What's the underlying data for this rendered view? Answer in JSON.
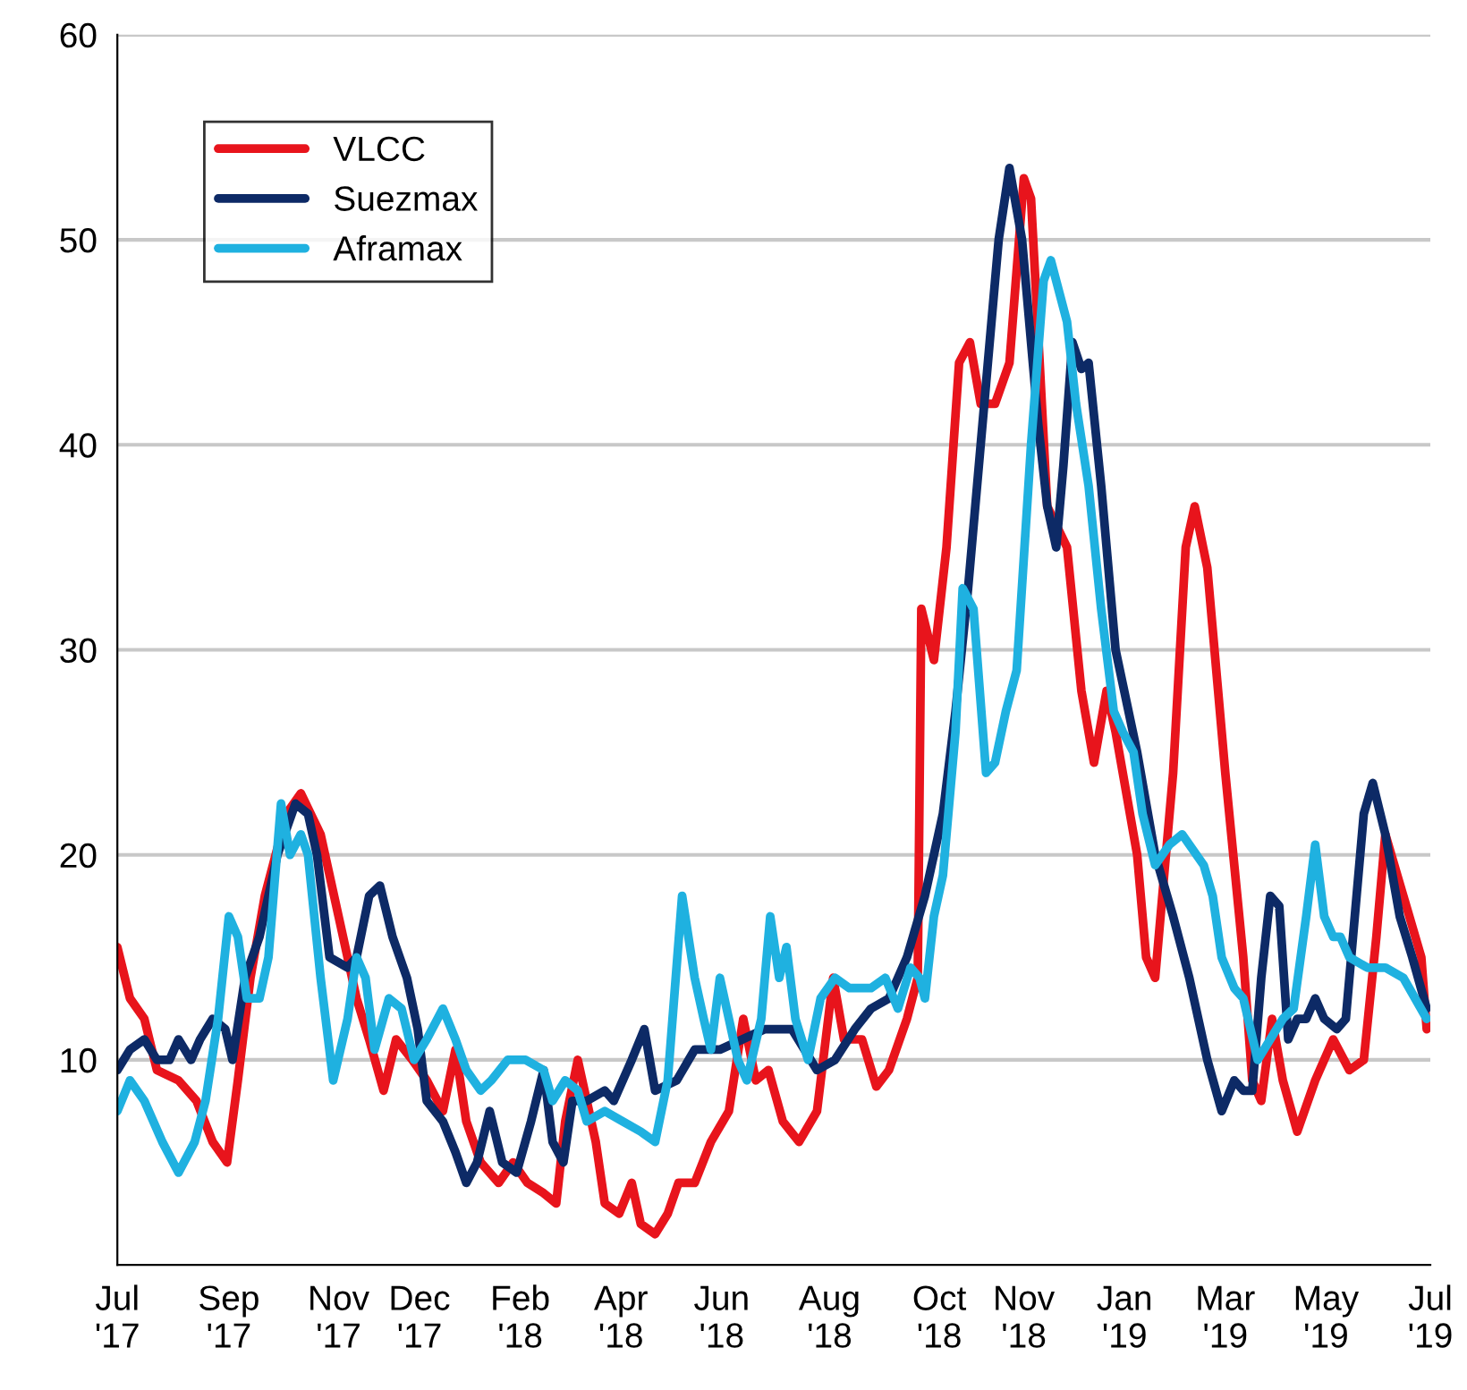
{
  "chart_data": {
    "type": "line",
    "xlim": [
      "2017-07-01",
      "2019-07-01"
    ],
    "ylim": [
      0,
      60
    ],
    "yticks": [
      10,
      20,
      30,
      40,
      50,
      60
    ],
    "xticks": [
      {
        "value": "2017-07-01",
        "label": "Jul\n'17"
      },
      {
        "value": "2017-09-01",
        "label": "Sep\n'17"
      },
      {
        "value": "2017-11-01",
        "label": "Nov\n'17"
      },
      {
        "value": "2017-12-16",
        "label": "Dec\n'17"
      },
      {
        "value": "2018-02-10",
        "label": "Feb\n'18"
      },
      {
        "value": "2018-04-07",
        "label": "Apr\n'18"
      },
      {
        "value": "2018-06-02",
        "label": "Jun\n'18"
      },
      {
        "value": "2018-08-01",
        "label": "Aug\n'18"
      },
      {
        "value": "2018-10-01",
        "label": "Oct\n'18"
      },
      {
        "value": "2018-11-17",
        "label": "Nov\n'18"
      },
      {
        "value": "2019-01-12",
        "label": "Jan\n'19"
      },
      {
        "value": "2019-03-09",
        "label": "Mar\n'19"
      },
      {
        "value": "2019-05-04",
        "label": "May\n'19"
      },
      {
        "value": "2019-07-01",
        "label": "Jul\n'19"
      }
    ],
    "grid": "y",
    "legend": "top left",
    "line_style": "solid",
    "series": [
      {
        "name": "VLCC",
        "color": "#e8141c",
        "x": [
          "2017-07-01",
          "2017-07-08",
          "2017-07-16",
          "2017-07-23",
          "2017-08-04",
          "2017-08-14",
          "2017-08-23",
          "2017-08-31",
          "2017-09-06",
          "2017-09-13",
          "2017-09-21",
          "2017-10-03",
          "2017-10-11",
          "2017-10-22",
          "2017-11-01",
          "2017-11-11",
          "2017-11-18",
          "2017-11-26",
          "2017-12-03",
          "2017-12-12",
          "2017-12-20",
          "2017-12-29",
          "2018-01-05",
          "2018-01-11",
          "2018-01-19",
          "2018-01-29",
          "2018-02-06",
          "2018-02-14",
          "2018-02-23",
          "2018-03-02",
          "2018-03-07",
          "2018-03-14",
          "2018-03-19",
          "2018-03-24",
          "2018-03-29",
          "2018-04-06",
          "2018-04-13",
          "2018-04-18",
          "2018-04-26",
          "2018-05-03",
          "2018-05-09",
          "2018-05-18",
          "2018-05-27",
          "2018-06-06",
          "2018-06-14",
          "2018-06-21",
          "2018-06-28",
          "2018-07-06",
          "2018-07-15",
          "2018-07-25",
          "2018-08-03",
          "2018-08-09",
          "2018-08-19",
          "2018-08-27",
          "2018-09-03",
          "2018-09-13",
          "2018-09-19",
          "2018-09-21",
          "2018-09-28",
          "2018-10-05",
          "2018-10-12",
          "2018-10-18",
          "2018-10-24",
          "2018-11-01",
          "2018-11-09",
          "2018-11-17",
          "2018-11-21",
          "2018-11-30",
          "2018-12-11",
          "2018-12-19",
          "2018-12-26",
          "2019-01-02",
          "2019-01-07",
          "2019-01-19",
          "2019-01-24",
          "2019-01-29",
          "2019-02-08",
          "2019-02-15",
          "2019-02-20",
          "2019-02-27",
          "2019-03-09",
          "2019-03-19",
          "2019-03-24",
          "2019-03-29",
          "2019-04-04",
          "2019-04-10",
          "2019-04-18",
          "2019-04-28",
          "2019-05-08",
          "2019-05-17",
          "2019-05-25",
          "2019-06-01",
          "2019-06-06",
          "2019-06-16",
          "2019-06-26",
          "2019-06-29"
        ],
        "values": [
          15.5,
          13,
          12,
          9.5,
          9,
          8,
          6,
          5,
          9,
          14,
          18,
          22,
          23,
          21,
          17,
          13,
          11,
          8.5,
          11,
          10,
          9,
          7.5,
          10.5,
          7,
          5,
          4,
          5,
          4,
          3.5,
          3,
          7,
          10,
          8,
          6,
          3,
          2.5,
          4,
          2,
          1.5,
          2.5,
          4,
          4,
          6,
          7.5,
          12,
          9,
          9.5,
          7,
          6,
          7.5,
          14,
          11,
          11,
          8.7,
          9.5,
          12,
          14,
          32,
          29.5,
          35,
          44,
          45,
          42,
          42,
          44,
          53,
          52,
          37,
          35,
          28,
          24.5,
          28,
          26,
          20,
          15,
          14,
          24,
          35,
          37,
          34,
          24,
          15,
          9,
          8,
          12,
          9,
          6.5,
          9,
          11,
          9.5,
          10,
          16,
          21,
          18,
          15,
          11.5
        ]
      },
      {
        "name": "Suezmax",
        "color": "#0d2a66",
        "x": [
          "2017-07-01",
          "2017-07-08",
          "2017-07-16",
          "2017-07-23",
          "2017-07-30",
          "2017-08-04",
          "2017-08-11",
          "2017-08-16",
          "2017-08-23",
          "2017-08-30",
          "2017-09-03",
          "2017-09-10",
          "2017-09-18",
          "2017-09-28",
          "2017-10-08",
          "2017-10-15",
          "2017-10-20",
          "2017-10-27",
          "2017-11-06",
          "2017-11-11",
          "2017-11-18",
          "2017-11-24",
          "2017-12-01",
          "2017-12-09",
          "2017-12-15",
          "2017-12-20",
          "2017-12-29",
          "2018-01-05",
          "2018-01-11",
          "2018-01-17",
          "2018-01-24",
          "2018-01-31",
          "2018-02-08",
          "2018-02-16",
          "2018-02-23",
          "2018-02-28",
          "2018-03-06",
          "2018-03-11",
          "2018-03-19",
          "2018-03-29",
          "2018-04-03",
          "2018-04-13",
          "2018-04-20",
          "2018-04-26",
          "2018-05-08",
          "2018-05-18",
          "2018-06-01",
          "2018-06-26",
          "2018-07-11",
          "2018-07-25",
          "2018-08-04",
          "2018-08-15",
          "2018-08-24",
          "2018-09-03",
          "2018-09-13",
          "2018-09-23",
          "2018-10-03",
          "2018-10-10",
          "2018-10-17",
          "2018-10-27",
          "2018-11-03",
          "2018-11-09",
          "2018-11-16",
          "2018-11-25",
          "2018-11-30",
          "2018-12-05",
          "2018-12-09",
          "2018-12-14",
          "2018-12-19",
          "2018-12-23",
          "2018-12-30",
          "2019-01-07",
          "2019-01-19",
          "2019-01-29",
          "2019-02-08",
          "2019-02-17",
          "2019-02-27",
          "2019-03-07",
          "2019-03-14",
          "2019-03-19",
          "2019-03-24",
          "2019-03-29",
          "2019-04-03",
          "2019-04-08",
          "2019-04-13",
          "2019-04-18",
          "2019-04-23",
          "2019-04-28",
          "2019-05-03",
          "2019-05-10",
          "2019-05-15",
          "2019-05-19",
          "2019-05-25",
          "2019-05-30",
          "2019-06-06",
          "2019-06-14",
          "2019-06-21",
          "2019-06-29"
        ],
        "values": [
          9.5,
          10.5,
          11,
          10,
          10,
          11,
          10,
          11,
          12,
          11.5,
          10,
          14,
          16,
          20,
          22.5,
          22,
          20,
          15,
          14.5,
          15,
          18,
          18.5,
          16,
          14,
          11.5,
          8,
          7,
          5.5,
          4,
          5,
          7.5,
          5,
          4.5,
          7,
          9.5,
          6,
          5,
          8,
          8,
          8.5,
          8,
          10,
          11.5,
          8.5,
          9,
          10.5,
          10.5,
          11.5,
          11.5,
          9.5,
          10,
          11.5,
          12.5,
          13,
          15,
          18,
          22,
          27,
          33,
          43,
          50,
          53.5,
          50,
          41,
          37,
          35,
          39,
          45,
          43.7,
          44,
          38,
          30,
          25,
          20,
          17,
          14,
          10,
          7.5,
          9,
          8.5,
          8.5,
          14,
          18,
          17.5,
          11,
          12,
          12,
          13,
          12,
          11.5,
          12,
          16,
          22,
          23.5,
          21,
          17,
          15,
          12.5
        ]
      },
      {
        "name": "Aframax",
        "color": "#1fb1e0",
        "x": [
          "2017-07-01",
          "2017-07-08",
          "2017-07-16",
          "2017-07-26",
          "2017-08-04",
          "2017-08-13",
          "2017-08-19",
          "2017-08-26",
          "2017-09-01",
          "2017-09-06",
          "2017-09-11",
          "2017-09-18",
          "2017-09-23",
          "2017-09-30",
          "2017-10-05",
          "2017-10-11",
          "2017-10-15",
          "2017-10-22",
          "2017-10-29",
          "2017-11-06",
          "2017-11-11",
          "2017-11-16",
          "2017-11-21",
          "2017-11-29",
          "2017-12-06",
          "2017-12-13",
          "2017-12-20",
          "2017-12-29",
          "2018-01-05",
          "2018-01-11",
          "2018-01-19",
          "2018-01-25",
          "2018-02-03",
          "2018-02-13",
          "2018-02-23",
          "2018-02-28",
          "2018-03-07",
          "2018-03-14",
          "2018-03-19",
          "2018-03-29",
          "2018-04-08",
          "2018-04-18",
          "2018-04-26",
          "2018-05-03",
          "2018-05-11",
          "2018-05-18",
          "2018-05-23",
          "2018-05-27",
          "2018-06-01",
          "2018-06-06",
          "2018-06-11",
          "2018-06-16",
          "2018-06-24",
          "2018-06-29",
          "2018-07-04",
          "2018-07-08",
          "2018-07-13",
          "2018-07-20",
          "2018-07-27",
          "2018-08-04",
          "2018-08-12",
          "2018-08-24",
          "2018-09-01",
          "2018-09-08",
          "2018-09-15",
          "2018-09-20",
          "2018-09-23",
          "2018-09-28",
          "2018-10-03",
          "2018-10-10",
          "2018-10-14",
          "2018-10-20",
          "2018-10-27",
          "2018-11-01",
          "2018-11-07",
          "2018-11-13",
          "2018-11-21",
          "2018-11-28",
          "2018-12-02",
          "2018-12-11",
          "2018-12-16",
          "2018-12-23",
          "2018-12-30",
          "2019-01-06",
          "2019-01-11",
          "2019-01-17",
          "2019-01-22",
          "2019-01-29",
          "2019-02-06",
          "2019-02-13",
          "2019-02-17",
          "2019-02-25",
          "2019-03-02",
          "2019-03-07",
          "2019-03-14",
          "2019-03-19",
          "2019-03-27",
          "2019-04-03",
          "2019-04-10",
          "2019-04-16",
          "2019-04-23",
          "2019-04-28",
          "2019-05-03",
          "2019-05-08",
          "2019-05-12",
          "2019-05-17",
          "2019-05-27",
          "2019-06-06",
          "2019-06-16",
          "2019-06-29"
        ],
        "values": [
          7.5,
          9,
          8,
          6,
          4.5,
          6,
          8,
          12,
          17,
          16,
          13,
          13,
          15,
          22.5,
          20,
          21,
          20,
          14,
          9,
          12,
          15,
          14,
          10.5,
          13,
          12.5,
          10,
          11,
          12.5,
          11,
          9.5,
          8.5,
          9,
          10,
          10,
          9.5,
          8,
          9,
          8.5,
          7,
          7.5,
          7,
          6.5,
          6,
          9,
          18,
          14,
          12,
          10.5,
          14,
          12,
          10,
          9,
          12,
          17,
          14,
          15.5,
          12,
          10,
          13,
          14,
          13.5,
          13.5,
          14,
          12.5,
          14.5,
          14,
          13,
          17,
          19,
          26,
          33,
          32,
          24,
          24.5,
          27,
          29,
          40,
          48,
          49,
          46,
          42,
          38,
          32,
          27,
          26,
          25,
          22,
          19.5,
          20.5,
          21,
          20.5,
          19.5,
          18,
          15,
          13.5,
          13,
          10,
          11,
          12,
          12.5,
          17,
          20.5,
          17,
          16,
          16,
          15,
          14.5,
          14.5,
          14,
          12
        ]
      }
    ]
  }
}
